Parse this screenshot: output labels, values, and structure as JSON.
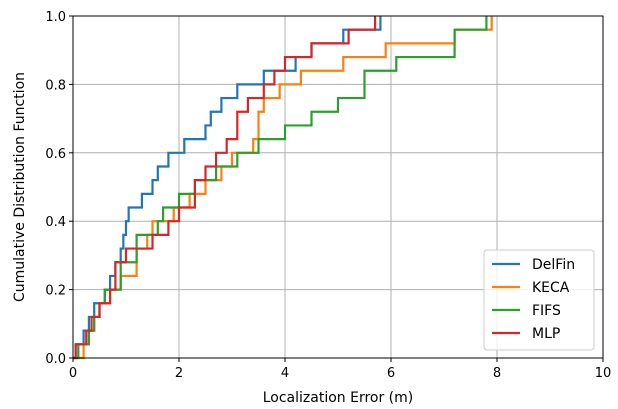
{
  "chart_data": {
    "type": "line",
    "step": "post",
    "title": "",
    "xlabel": "Localization Error (m)",
    "ylabel": "Cumulative Distribution Function",
    "xlim": [
      0,
      10
    ],
    "ylim": [
      0,
      1
    ],
    "xticks": [
      "0",
      "2",
      "4",
      "6",
      "8",
      "10"
    ],
    "yticks": [
      "0.0",
      "0.2",
      "0.4",
      "0.6",
      "0.8",
      "1.0"
    ],
    "grid": true,
    "legend_position": "lower-right",
    "series": [
      {
        "name": "DelFin",
        "color": "#1f77b4",
        "x": [
          0.0,
          0.05,
          0.2,
          0.3,
          0.4,
          0.45,
          0.6,
          0.7,
          0.8,
          0.9,
          0.95,
          1.0,
          1.05,
          1.1,
          1.3,
          1.5,
          1.6,
          1.8,
          2.1,
          2.5,
          2.6,
          2.8,
          3.1,
          3.6,
          4.1,
          4.2,
          4.5,
          5.0,
          5.1,
          5.8
        ],
        "y": [
          0.0,
          0.04,
          0.08,
          0.12,
          0.16,
          0.16,
          0.2,
          0.24,
          0.28,
          0.32,
          0.36,
          0.4,
          0.44,
          0.44,
          0.48,
          0.52,
          0.56,
          0.6,
          0.64,
          0.68,
          0.72,
          0.76,
          0.8,
          0.84,
          0.84,
          0.88,
          0.92,
          0.92,
          0.96,
          1.0
        ]
      },
      {
        "name": "KECA",
        "color": "#ff7f0e",
        "x": [
          0.0,
          0.2,
          0.3,
          0.4,
          0.5,
          0.7,
          0.9,
          1.2,
          1.4,
          1.5,
          1.9,
          2.2,
          2.5,
          2.8,
          3.0,
          3.4,
          3.5,
          3.6,
          3.9,
          4.3,
          4.6,
          5.1,
          5.9,
          7.2,
          7.9
        ],
        "y": [
          0.0,
          0.04,
          0.08,
          0.12,
          0.16,
          0.2,
          0.24,
          0.32,
          0.36,
          0.4,
          0.44,
          0.48,
          0.52,
          0.56,
          0.6,
          0.64,
          0.72,
          0.76,
          0.8,
          0.84,
          0.84,
          0.88,
          0.92,
          0.96,
          1.0
        ]
      },
      {
        "name": "FIFS",
        "color": "#2ca02c",
        "x": [
          0.0,
          0.1,
          0.3,
          0.4,
          0.5,
          0.6,
          0.9,
          1.2,
          1.6,
          1.7,
          2.0,
          2.3,
          2.7,
          3.1,
          3.5,
          4.0,
          4.5,
          5.0,
          5.5,
          6.1,
          7.2,
          7.8
        ],
        "y": [
          0.0,
          0.04,
          0.08,
          0.12,
          0.16,
          0.2,
          0.28,
          0.36,
          0.4,
          0.44,
          0.48,
          0.52,
          0.56,
          0.6,
          0.64,
          0.68,
          0.72,
          0.76,
          0.84,
          0.88,
          0.96,
          1.0
        ]
      },
      {
        "name": "MLP",
        "color": "#d62728",
        "x": [
          0.0,
          0.05,
          0.25,
          0.35,
          0.5,
          0.7,
          0.8,
          1.0,
          1.1,
          1.5,
          1.8,
          2.0,
          2.3,
          2.5,
          2.7,
          2.9,
          3.1,
          3.3,
          3.6,
          3.8,
          4.0,
          4.3,
          4.5,
          4.8,
          5.2,
          5.5,
          5.7
        ],
        "y": [
          0.0,
          0.04,
          0.08,
          0.12,
          0.16,
          0.2,
          0.28,
          0.32,
          0.32,
          0.36,
          0.4,
          0.44,
          0.52,
          0.56,
          0.6,
          0.64,
          0.72,
          0.76,
          0.8,
          0.84,
          0.88,
          0.88,
          0.92,
          0.92,
          0.96,
          0.96,
          1.0
        ]
      }
    ]
  }
}
